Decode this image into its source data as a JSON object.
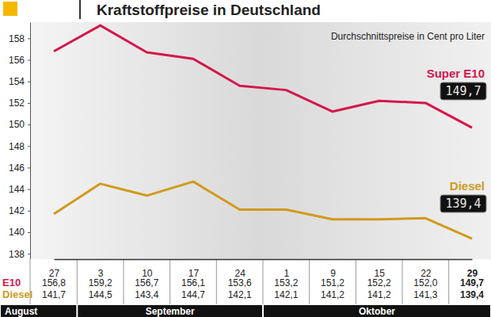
{
  "chart_data": {
    "type": "line",
    "title": "Kraftstoffpreise in Deutschland",
    "subtitle": "Durchschnittspreise in Cent pro Liter",
    "categories": [
      "27",
      "3",
      "10",
      "17",
      "24",
      "1",
      "9",
      "15",
      "22",
      "29"
    ],
    "x_groups": [
      {
        "label": "August",
        "span": 1
      },
      {
        "label": "September",
        "span": 4
      },
      {
        "label": "Oktober",
        "span": 5
      }
    ],
    "series": [
      {
        "name": "Super E10",
        "short_name": "E10",
        "color": "#d4174d",
        "values": [
          156.8,
          159.2,
          156.7,
          156.1,
          153.6,
          153.2,
          151.2,
          152.2,
          152.0,
          149.7
        ],
        "value_labels": [
          "156,8",
          "159,2",
          "156,7",
          "156,1",
          "153,6",
          "153,2",
          "151,2",
          "152,2",
          "152,0",
          "149,7"
        ]
      },
      {
        "name": "Diesel",
        "short_name": "Diesel",
        "color": "#d09a1c",
        "values": [
          141.7,
          144.5,
          143.4,
          144.7,
          142.1,
          142.1,
          141.2,
          141.2,
          141.3,
          139.4
        ],
        "value_labels": [
          "141,7",
          "144,5",
          "143,4",
          "144,7",
          "142,1",
          "142,1",
          "141,2",
          "141,2",
          "141,3",
          "139,4"
        ]
      }
    ],
    "ylim": [
      137.5,
      159.5
    ],
    "yticks": [
      138,
      140,
      142,
      144,
      146,
      148,
      150,
      152,
      154,
      156,
      158
    ],
    "grid": false
  }
}
